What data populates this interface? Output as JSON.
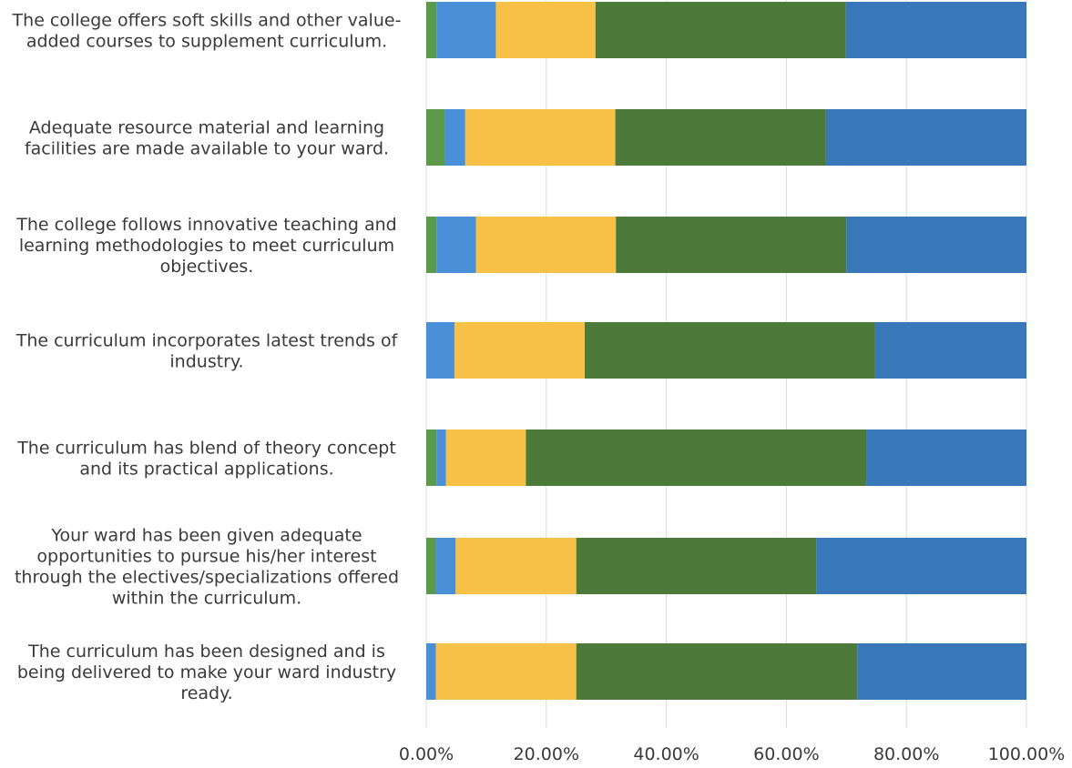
{
  "chart_data": {
    "type": "bar",
    "orientation": "horizontal",
    "stacked": "percent",
    "categories": [
      [
        "The college offers soft skills and other value-",
        "added courses to supplement curriculum."
      ],
      [
        "Adequate resource material and learning",
        "facilities are made available to your ward."
      ],
      [
        "The college follows innovative teaching and",
        "learning methodologies to meet curriculum",
        "objectives."
      ],
      [
        "The curriculum incorporates latest trends of",
        "industry."
      ],
      [
        "The curriculum has blend of theory concept",
        "and its practical applications."
      ],
      [
        "Your ward has been given adequate",
        "opportunities to pursue his/her interest",
        "through the electives/specializations offered",
        "within the curriculum."
      ],
      [
        "The curriculum has been designed and is",
        "being delivered to make your ward industry",
        "ready."
      ]
    ],
    "series": [
      {
        "color": "#5b9a4a",
        "values": [
          1.7,
          3.1,
          1.7,
          0.0,
          1.7,
          1.6,
          0.0
        ]
      },
      {
        "color": "#4a90d9",
        "values": [
          9.9,
          3.4,
          6.6,
          4.7,
          1.6,
          3.3,
          1.6
        ]
      },
      {
        "color": "#f7c046",
        "values": [
          16.6,
          25.0,
          23.3,
          21.7,
          13.3,
          20.1,
          23.4
        ]
      },
      {
        "color": "#4d7a3a",
        "values": [
          41.7,
          35.1,
          38.4,
          48.4,
          56.7,
          40.0,
          46.8
        ]
      },
      {
        "color": "#3978b8",
        "values": [
          30.1,
          33.4,
          30.0,
          25.2,
          26.7,
          35.0,
          28.2
        ]
      }
    ],
    "xlim": [
      0,
      100
    ],
    "xticks": [
      "0.00%",
      "20.00%",
      "40.00%",
      "60.00%",
      "80.00%",
      "100.00%"
    ],
    "grid": true,
    "legend": "none"
  }
}
